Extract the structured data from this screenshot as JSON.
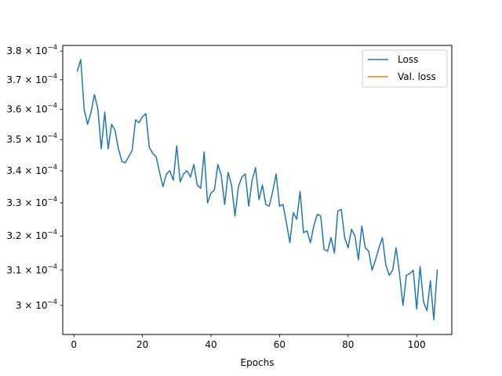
{
  "chart_data": {
    "type": "line",
    "title": "",
    "xlabel": "Epochs",
    "ylabel": "",
    "xlim": [
      -3.25,
      110.25
    ],
    "ylim": [
      0.000292,
      0.000382
    ],
    "y_scale": "log",
    "grid": false,
    "legend_position": "top-right",
    "x_ticks": [
      0,
      20,
      40,
      60,
      80,
      100
    ],
    "x_tick_labels": [
      "0",
      "20",
      "40",
      "60",
      "80",
      "100"
    ],
    "y_ticks": [
      0.0003,
      0.00031,
      0.00032,
      0.00033,
      0.00034,
      0.00035,
      0.00036,
      0.00037,
      0.00038
    ],
    "y_tick_labels": [
      {
        "mantissa": "3",
        "times": "",
        "exp": "−4"
      },
      {
        "mantissa": "3.1",
        "times": "×",
        "exp": "−4"
      },
      {
        "mantissa": "3.2",
        "times": "×",
        "exp": "−4"
      },
      {
        "mantissa": "3.3",
        "times": "×",
        "exp": "−4"
      },
      {
        "mantissa": "3.4",
        "times": "×",
        "exp": "−4"
      },
      {
        "mantissa": "3.5",
        "times": "×",
        "exp": "−4"
      },
      {
        "mantissa": "3.6",
        "times": "×",
        "exp": "−4"
      },
      {
        "mantissa": "3.7",
        "times": "×",
        "exp": "−4"
      },
      {
        "mantissa": "3.8",
        "times": "×",
        "exp": "−4"
      }
    ],
    "series": [
      {
        "name": "Loss",
        "color": "#1f77b4",
        "x": [
          1,
          2,
          3,
          4,
          5,
          6,
          7,
          8,
          9,
          10,
          11,
          12,
          13,
          14,
          15,
          16,
          17,
          18,
          19,
          20,
          21,
          22,
          23,
          24,
          25,
          26,
          27,
          28,
          29,
          30,
          31,
          32,
          33,
          34,
          35,
          36,
          37,
          38,
          39,
          40,
          41,
          42,
          43,
          44,
          45,
          46,
          47,
          48,
          49,
          50,
          51,
          52,
          53,
          54,
          55,
          56,
          57,
          58,
          59,
          60,
          61,
          62,
          63,
          64,
          65,
          66,
          67,
          68,
          69,
          70,
          71,
          72,
          73,
          74,
          75,
          76,
          77,
          78,
          79,
          80,
          81,
          82,
          83,
          84,
          85,
          86,
          87,
          88,
          89,
          90,
          91,
          92,
          93,
          94,
          95,
          96,
          97,
          98,
          99,
          100,
          101,
          102,
          103,
          104,
          105,
          106
        ],
        "values": [
          0.000373,
          0.000377,
          0.00036,
          0.000355,
          0.000359,
          0.000365,
          0.00036,
          0.000347,
          0.000359,
          0.000347,
          0.000355,
          0.000353,
          0.000347,
          0.000343,
          0.0003425,
          0.0003445,
          0.0003465,
          0.0003565,
          0.0003555,
          0.0003575,
          0.0003585,
          0.0003475,
          0.0003455,
          0.0003445,
          0.0003395,
          0.000335,
          0.000339,
          0.00034,
          0.000337,
          0.000348,
          0.0003365,
          0.000339,
          0.00034,
          0.000338,
          0.000342,
          0.0003355,
          0.0003345,
          0.000346,
          0.00033,
          0.000333,
          0.000334,
          0.000342,
          0.0003385,
          0.0003295,
          0.0003395,
          0.0003355,
          0.000326,
          0.000335,
          0.000338,
          0.000339,
          0.000329,
          0.000337,
          0.000341,
          0.000331,
          0.0003355,
          0.0003295,
          0.000329,
          0.0003335,
          0.000339,
          0.000329,
          0.0003295,
          0.000324,
          0.000318,
          0.000327,
          0.000325,
          0.0003335,
          0.000321,
          0.0003215,
          0.000318,
          0.000323,
          0.0003265,
          0.000326,
          0.000316,
          0.0003155,
          0.0003195,
          0.000315,
          0.0003275,
          0.000328,
          0.0003195,
          0.0003165,
          0.000322,
          0.00032,
          0.000313,
          0.000323,
          0.0003165,
          0.0003155,
          0.00031,
          0.000313,
          0.0003165,
          0.0003195,
          0.0003115,
          0.0003085,
          0.00031,
          0.0003165,
          0.000309,
          0.0003,
          0.0003085,
          0.000309,
          0.00031,
          0.000299,
          0.000311,
          0.000301,
          0.0002985,
          0.000307,
          0.000296,
          0.00031
        ]
      },
      {
        "name": "Val. loss",
        "color": "#ff7f0e",
        "x": [],
        "values": []
      }
    ]
  }
}
